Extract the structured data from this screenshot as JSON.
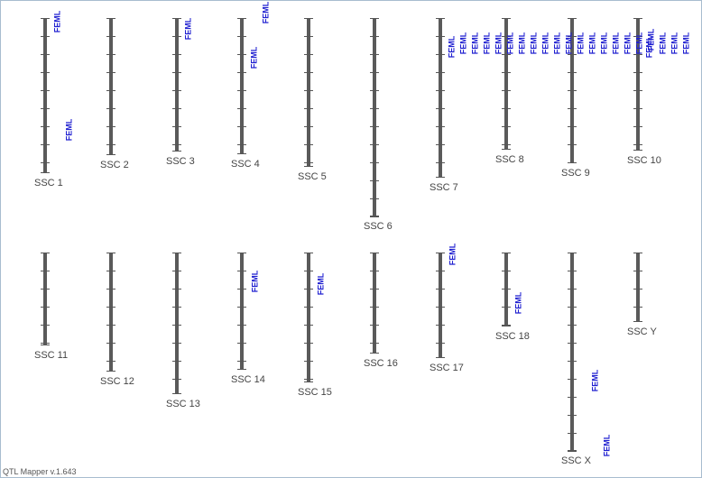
{
  "chromosomes": [
    {
      "label": "SSC 1",
      "qtls": [
        "FEML",
        "FEML"
      ]
    },
    {
      "label": "SSC 2",
      "qtls": []
    },
    {
      "label": "SSC 3",
      "qtls": [
        "FEML"
      ]
    },
    {
      "label": "SSC 4",
      "qtls": [
        "FEML",
        "FEML"
      ]
    },
    {
      "label": "SSC 5",
      "qtls": []
    },
    {
      "label": "SSC 6",
      "qtls": []
    },
    {
      "label": "SSC 7",
      "qtls": [
        "FEML",
        "FEML",
        "FEML",
        "FEML"
      ]
    },
    {
      "label": "SSC 8",
      "qtls": [
        "FEML",
        "FEML",
        "FEML",
        "FEML",
        "FEML",
        "FEML"
      ]
    },
    {
      "label": "SSC 9",
      "qtls": [
        "FEML",
        "FEML",
        "FEML",
        "FEML",
        "FEML",
        "FEML"
      ]
    },
    {
      "label": "SSC 10",
      "qtls": [
        "FEML",
        "FEML",
        "FEML",
        "FEML",
        "FEML",
        "FEML"
      ]
    },
    {
      "label": "SSC 11",
      "qtls": []
    },
    {
      "label": "SSC 12",
      "qtls": []
    },
    {
      "label": "SSC 13",
      "qtls": []
    },
    {
      "label": "SSC 14",
      "qtls": [
        "FEML"
      ]
    },
    {
      "label": "SSC 15",
      "qtls": [
        "FEML"
      ]
    },
    {
      "label": "SSC 16",
      "qtls": []
    },
    {
      "label": "SSC 17",
      "qtls": [
        "FEML"
      ]
    },
    {
      "label": "SSC 18",
      "qtls": [
        "FEML"
      ]
    },
    {
      "label": "SSC X",
      "qtls": [
        "FEML",
        "FEML"
      ]
    },
    {
      "label": "SSC Y",
      "qtls": []
    }
  ],
  "footer": "QTL Mapper v.1.643"
}
